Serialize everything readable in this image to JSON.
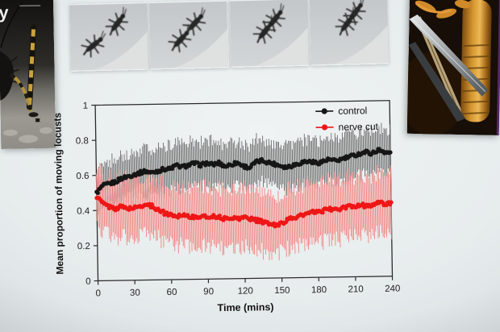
{
  "slide": {
    "background_color": "#e7eced",
    "left_photo": {
      "overlay_letter": "y",
      "description": "dark close-up photo of a locust with yellow-banded legs"
    },
    "film_strip": {
      "frames": [
        {
          "description": "two locusts apart"
        },
        {
          "description": "locusts approaching"
        },
        {
          "description": "locusts making contact"
        },
        {
          "description": "locusts paired"
        }
      ]
    },
    "right_photo": {
      "description": "close-up of locust dissection with forceps (nerve cut)"
    }
  },
  "chart_data": {
    "type": "line",
    "title": "",
    "xlabel": "Time (mins)",
    "ylabel": "Mean proportion of moving locusts",
    "xlim": [
      0,
      240
    ],
    "ylim": [
      0,
      1
    ],
    "x_tick_values": [
      0,
      30,
      60,
      90,
      120,
      150,
      180,
      210,
      240
    ],
    "x_tick_labels": [
      "0",
      "30",
      "60",
      "90",
      "120",
      "150",
      "180",
      "210",
      "240"
    ],
    "y_tick_values": [
      0,
      0.2,
      0.4,
      0.6,
      0.8,
      1
    ],
    "y_tick_labels": [
      "0",
      "0.2",
      "0.4",
      "0.6",
      "0.8",
      "1"
    ],
    "grid": false,
    "legend_position": "top-right",
    "axis_color": "#2b2b2b",
    "tick_label_color": "#222222",
    "x": [
      0,
      5,
      10,
      15,
      20,
      25,
      30,
      35,
      40,
      45,
      50,
      55,
      60,
      65,
      70,
      75,
      80,
      85,
      90,
      95,
      100,
      105,
      110,
      115,
      120,
      125,
      130,
      135,
      140,
      145,
      150,
      155,
      160,
      165,
      170,
      175,
      180,
      185,
      190,
      195,
      200,
      205,
      210,
      215,
      220,
      225,
      230,
      235,
      240
    ],
    "series": [
      {
        "name": "control",
        "color": "#161616",
        "error_color": "#6f6f6f",
        "error": 0.13,
        "values": [
          0.5,
          0.54,
          0.55,
          0.56,
          0.58,
          0.59,
          0.6,
          0.61,
          0.62,
          0.61,
          0.62,
          0.63,
          0.63,
          0.65,
          0.64,
          0.65,
          0.66,
          0.65,
          0.66,
          0.65,
          0.66,
          0.64,
          0.65,
          0.66,
          0.64,
          0.63,
          0.66,
          0.67,
          0.66,
          0.65,
          0.64,
          0.63,
          0.64,
          0.65,
          0.66,
          0.66,
          0.65,
          0.66,
          0.67,
          0.66,
          0.67,
          0.68,
          0.69,
          0.7,
          0.71,
          0.7,
          0.72,
          0.71,
          0.7
        ]
      },
      {
        "name": "nerve cut",
        "color": "#ee1616",
        "error_color": "#f2837f",
        "error": 0.17,
        "values": [
          0.48,
          0.44,
          0.42,
          0.41,
          0.42,
          0.41,
          0.41,
          0.42,
          0.43,
          0.42,
          0.4,
          0.38,
          0.37,
          0.36,
          0.37,
          0.36,
          0.35,
          0.36,
          0.35,
          0.36,
          0.35,
          0.34,
          0.35,
          0.34,
          0.35,
          0.34,
          0.33,
          0.32,
          0.31,
          0.3,
          0.31,
          0.33,
          0.34,
          0.35,
          0.36,
          0.37,
          0.37,
          0.38,
          0.39,
          0.38,
          0.39,
          0.4,
          0.4,
          0.41,
          0.4,
          0.41,
          0.42,
          0.41,
          0.42
        ]
      }
    ]
  }
}
